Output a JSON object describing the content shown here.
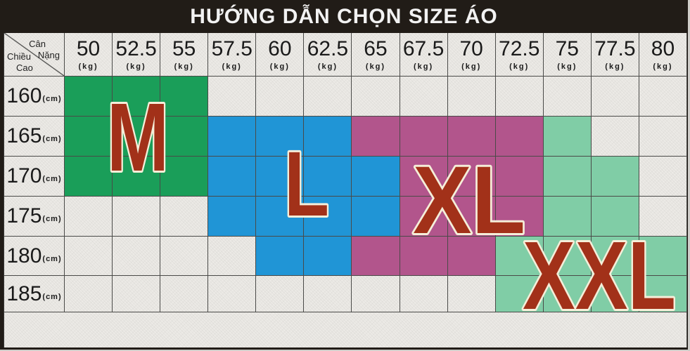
{
  "title": "HƯỚNG DẪN CHỌN SIZE ÁO",
  "corner": {
    "weight_word_1": "Cân",
    "weight_word_2": "Nặng",
    "height_word_1": "Chiều",
    "height_word_2": "Cao"
  },
  "chart_data": {
    "type": "heatmap",
    "title": "HƯỚNG DẪN CHỌN SIZE ÁO",
    "x_axis_label": "Cân Nặng",
    "x_unit": "(kg)",
    "y_axis_label": "Chiều Cao",
    "y_unit": "(cm)",
    "weights_kg": [
      "50",
      "52.5",
      "55",
      "57.5",
      "60",
      "62.5",
      "65",
      "67.5",
      "70",
      "72.5",
      "75",
      "77.5",
      "80"
    ],
    "heights_cm": [
      "160",
      "165",
      "170",
      "175",
      "180",
      "185"
    ],
    "sizes": [
      {
        "code": "M",
        "label": "M",
        "color": "#1a9e59"
      },
      {
        "code": "L",
        "label": "L",
        "color": "#2095d6"
      },
      {
        "code": "XL",
        "label": "XL",
        "color": "#b2558c"
      },
      {
        "code": "XXL",
        "label": "XXL",
        "color": "#80cda6"
      }
    ],
    "grid": [
      [
        "M",
        "M",
        "M",
        "",
        "",
        "",
        "",
        "",
        "",
        "",
        "",
        "",
        ""
      ],
      [
        "M",
        "M",
        "M",
        "L",
        "L",
        "L",
        "XL",
        "XL",
        "XL",
        "XL",
        "XXL",
        "",
        ""
      ],
      [
        "M",
        "M",
        "M",
        "L",
        "L",
        "L",
        "L",
        "XL",
        "XL",
        "XL",
        "XXL",
        "XXL",
        ""
      ],
      [
        "",
        "",
        "",
        "L",
        "L",
        "L",
        "L",
        "XL",
        "XL",
        "XL",
        "XXL",
        "XXL",
        ""
      ],
      [
        "",
        "",
        "",
        "",
        "L",
        "L",
        "XL",
        "XL",
        "XL",
        "XXL",
        "XXL",
        "XXL",
        "XXL"
      ],
      [
        "",
        "",
        "",
        "",
        "",
        "",
        "",
        "",
        "",
        "XXL",
        "XXL",
        "XXL",
        "XXL"
      ]
    ],
    "colors": {
      "label_fill": "#a23119",
      "label_outline": "#f5eed9",
      "title_bg": "#211c17",
      "title_text": "#f2f2f2",
      "cell_bg": "#eceae6",
      "grid_line": "#4a4a48"
    },
    "legend_position": "none",
    "grid_lines": true
  }
}
